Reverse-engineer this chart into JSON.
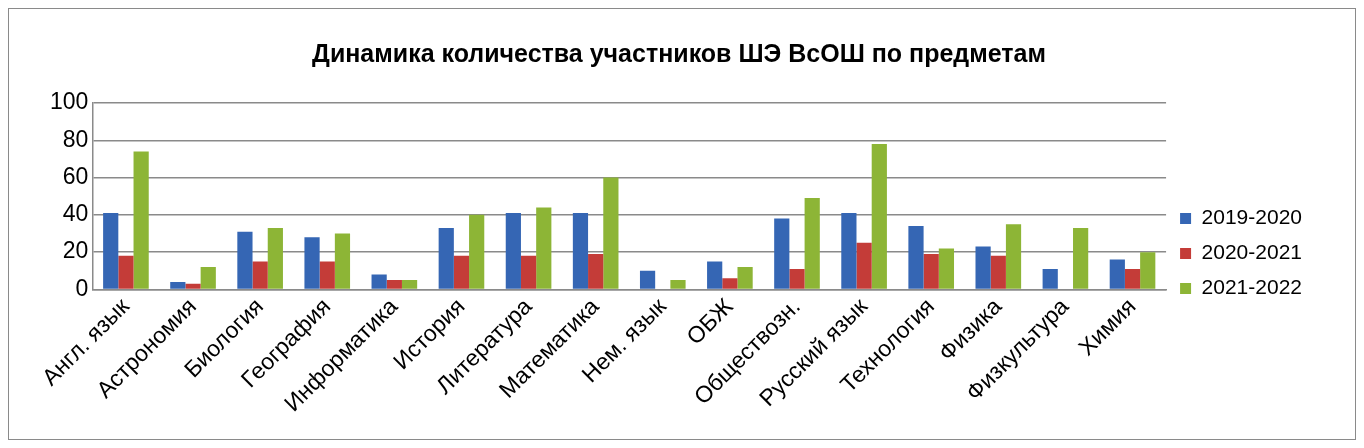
{
  "chart_data": {
    "type": "bar",
    "title": "Динамика количества участников ШЭ ВсОШ по предметам",
    "categories": [
      "Англ. язык",
      "Астрономия",
      "Биология",
      "География",
      "Информатика",
      "История",
      "Литература",
      "Математика",
      "Нем. язык",
      "ОБЖ",
      "Обществозн.",
      "Русский язык",
      "Технология",
      "Физика",
      "Физкультура",
      "Химия"
    ],
    "series": [
      {
        "name": "2019-2020",
        "color": "#3566b4",
        "values": [
          41,
          4,
          31,
          28,
          8,
          33,
          41,
          41,
          10,
          15,
          38,
          41,
          34,
          23,
          11,
          16
        ]
      },
      {
        "name": "2020-2021",
        "color": "#c43c38",
        "values": [
          18,
          3,
          15,
          15,
          5,
          18,
          18,
          19,
          null,
          6,
          11,
          25,
          19,
          18,
          null,
          11
        ]
      },
      {
        "name": "2021-2022",
        "color": "#8db536",
        "values": [
          74,
          12,
          33,
          30,
          5,
          40,
          44,
          60,
          5,
          12,
          49,
          78,
          22,
          35,
          33,
          20
        ]
      }
    ],
    "ylim": [
      0,
      100
    ],
    "yticks": [
      0,
      20,
      40,
      60,
      80,
      100
    ],
    "grid": "y",
    "legend": "right"
  }
}
